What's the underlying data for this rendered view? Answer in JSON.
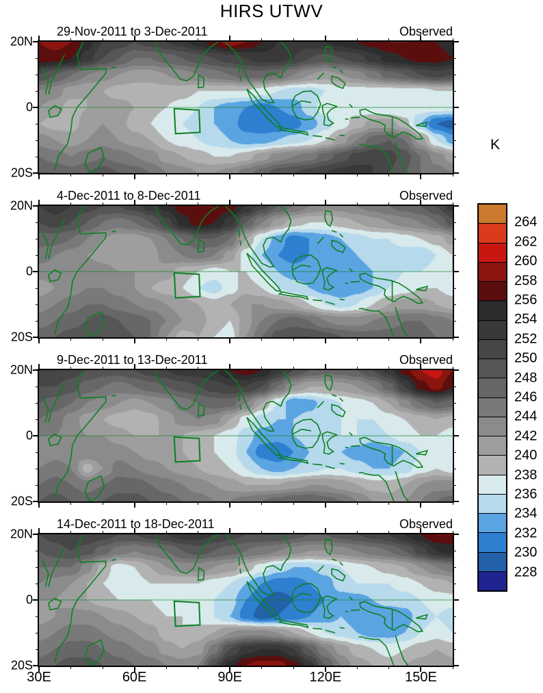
{
  "title": "HIRS UTWV",
  "colorbar": {
    "unit_label": "K",
    "boundary_labels": [
      "264",
      "262",
      "260",
      "258",
      "256",
      "254",
      "252",
      "250",
      "248",
      "246",
      "244",
      "242",
      "240",
      "238",
      "236",
      "234",
      "232",
      "230",
      "228"
    ]
  },
  "axes": {
    "x_tick_labels": [
      "30E",
      "60E",
      "90E",
      "120E",
      "150E"
    ],
    "x_tick_lons": [
      30,
      60,
      90,
      120,
      150
    ],
    "y_tick_labels": [
      "20N",
      "0",
      "20S"
    ],
    "lon_range": [
      30,
      160
    ],
    "lat_range": [
      -20,
      20
    ]
  },
  "chart_data": {
    "type": "heatmap",
    "title": "HIRS UTWV",
    "units": "K",
    "subtitle_right": "Observed",
    "lon_grid_start": 30,
    "lon_grid_step": 5,
    "lat_grid_start": 20,
    "lat_grid_step": -5,
    "levels": [
      228,
      230,
      232,
      234,
      236,
      238,
      240,
      242,
      244,
      246,
      248,
      250,
      252,
      254,
      256,
      258,
      260,
      262,
      264
    ],
    "palette_cold_to_hot": [
      "#1f2490",
      "#2361a8",
      "#2e7fd0",
      "#5ba4e2",
      "#b7d9ec",
      "#d9eaec",
      "#b2b2b2",
      "#9e9e9e",
      "#8b8b8b",
      "#797979",
      "#676767",
      "#565656",
      "#464646",
      "#393939",
      "#2d2d2d",
      "#5a0f0e",
      "#8c1510",
      "#c81710",
      "#d93b1b",
      "#ca7a2c"
    ],
    "coastline_color": "#0a8020",
    "annotations": {
      "equator_dashed_line": true,
      "study_box_lon": [
        72.5,
        80.3
      ],
      "study_box_lat": [
        -7.9,
        -0.6
      ]
    },
    "panels": [
      {
        "date_range": "29-Nov-2011 to 3-Dec-2011",
        "source_label": "Observed",
        "grid": [
          [
            258,
            259,
            258,
            255,
            252,
            251,
            250,
            251,
            252,
            253,
            255,
            257,
            259,
            258,
            256,
            254,
            253,
            253,
            254,
            255,
            256,
            257,
            258,
            258,
            257,
            256,
            255
          ],
          [
            257,
            257,
            256,
            253,
            250,
            248,
            246,
            246,
            247,
            248,
            249,
            250,
            251,
            252,
            253,
            253,
            252,
            250,
            249,
            250,
            251,
            253,
            255,
            256,
            257,
            257,
            256
          ],
          [
            250,
            248,
            246,
            244,
            243,
            242,
            241,
            241,
            242,
            243,
            244,
            245,
            246,
            247,
            247,
            246,
            244,
            242,
            241,
            242,
            243,
            245,
            247,
            248,
            250,
            251,
            250
          ],
          [
            244,
            243,
            241,
            240,
            240,
            239,
            239,
            239,
            239,
            239,
            238,
            238,
            238,
            238,
            237,
            236,
            235,
            235,
            236,
            237,
            237,
            237,
            237,
            237,
            237,
            238,
            238
          ],
          [
            242,
            241,
            239,
            240,
            241,
            241,
            240,
            239,
            238,
            237,
            236,
            234,
            233,
            232,
            231,
            232,
            233,
            235,
            237,
            238,
            237,
            236,
            236,
            236,
            237,
            237,
            237
          ],
          [
            240,
            239,
            239,
            241,
            242,
            241,
            239,
            238,
            236,
            236,
            235,
            234,
            233,
            231,
            230,
            230,
            231,
            233,
            235,
            237,
            239,
            241,
            241,
            239,
            234,
            230,
            229
          ],
          [
            243,
            242,
            241,
            242,
            243,
            242,
            241,
            240,
            238,
            237,
            236,
            235,
            234,
            233,
            233,
            234,
            235,
            236,
            238,
            241,
            244,
            247,
            248,
            246,
            241,
            236,
            233
          ],
          [
            246,
            245,
            244,
            245,
            246,
            245,
            244,
            243,
            241,
            240,
            239,
            238,
            238,
            239,
            241,
            243,
            244,
            245,
            247,
            249,
            251,
            252,
            251,
            249,
            246,
            243,
            241
          ],
          [
            248,
            248,
            247,
            248,
            249,
            248,
            247,
            246,
            244,
            243,
            242,
            242,
            243,
            245,
            247,
            249,
            250,
            251,
            252,
            253,
            253,
            252,
            250,
            248,
            246,
            245,
            244
          ]
        ]
      },
      {
        "date_range": "4-Dec-2011 to 8-Dec-2011",
        "source_label": "Observed",
        "grid": [
          [
            252,
            253,
            252,
            251,
            250,
            250,
            251,
            253,
            255,
            257,
            258,
            258,
            257,
            254,
            251,
            248,
            246,
            244,
            243,
            243,
            244,
            245,
            246,
            247,
            248,
            250,
            253
          ],
          [
            250,
            251,
            250,
            248,
            246,
            245,
            246,
            248,
            251,
            255,
            257,
            256,
            253,
            248,
            244,
            241,
            239,
            238,
            238,
            239,
            240,
            241,
            242,
            243,
            244,
            246,
            249
          ],
          [
            247,
            247,
            246,
            244,
            242,
            241,
            241,
            242,
            244,
            246,
            248,
            248,
            246,
            240,
            236,
            233,
            231,
            232,
            233,
            234,
            235,
            236,
            236,
            237,
            238,
            239,
            241
          ],
          [
            245,
            244,
            243,
            242,
            241,
            240,
            240,
            241,
            243,
            244,
            245,
            244,
            241,
            237,
            234,
            232,
            231,
            232,
            233,
            233,
            234,
            235,
            235,
            235,
            234,
            236,
            238
          ],
          [
            243,
            243,
            244,
            244,
            243,
            242,
            242,
            242,
            241,
            239,
            238,
            237,
            238,
            238,
            236,
            234,
            233,
            233,
            233,
            233,
            233,
            234,
            235,
            236,
            236,
            237,
            238
          ],
          [
            241,
            242,
            243,
            244,
            244,
            243,
            242,
            240,
            239,
            238,
            236,
            235,
            237,
            239,
            238,
            236,
            235,
            234,
            233,
            232,
            233,
            234,
            236,
            237,
            238,
            238,
            237
          ],
          [
            243,
            244,
            245,
            246,
            246,
            245,
            244,
            243,
            242,
            241,
            240,
            239,
            240,
            242,
            242,
            241,
            240,
            238,
            236,
            235,
            236,
            238,
            240,
            241,
            241,
            240,
            239
          ],
          [
            245,
            246,
            247,
            248,
            249,
            248,
            247,
            246,
            244,
            242,
            241,
            239,
            238,
            241,
            244,
            246,
            247,
            246,
            244,
            243,
            243,
            244,
            245,
            246,
            246,
            245,
            244
          ],
          [
            247,
            248,
            249,
            250,
            250,
            249,
            248,
            246,
            242,
            239,
            240,
            238,
            237,
            242,
            246,
            249,
            250,
            250,
            249,
            248,
            247,
            247,
            247,
            247,
            247,
            246,
            245
          ]
        ]
      },
      {
        "date_range": "9-Dec-2011 to 13-Dec-2011",
        "source_label": "Observed",
        "grid": [
          [
            252,
            252,
            251,
            250,
            249,
            249,
            250,
            251,
            252,
            253,
            253,
            254,
            256,
            257,
            256,
            253,
            250,
            248,
            247,
            247,
            248,
            250,
            253,
            257,
            260,
            261,
            258
          ],
          [
            250,
            250,
            249,
            247,
            246,
            245,
            246,
            247,
            248,
            249,
            250,
            251,
            252,
            252,
            250,
            246,
            242,
            240,
            240,
            241,
            242,
            244,
            247,
            252,
            257,
            259,
            256
          ],
          [
            248,
            247,
            246,
            244,
            243,
            242,
            241,
            242,
            243,
            245,
            246,
            247,
            247,
            244,
            240,
            236,
            232,
            233,
            235,
            236,
            237,
            238,
            240,
            243,
            246,
            248,
            247
          ],
          [
            246,
            245,
            243,
            241,
            240,
            239,
            238,
            239,
            241,
            243,
            244,
            243,
            240,
            237,
            235,
            234,
            234,
            235,
            236,
            236,
            236,
            236,
            237,
            238,
            239,
            240,
            239
          ],
          [
            244,
            244,
            243,
            242,
            242,
            241,
            240,
            240,
            240,
            240,
            239,
            238,
            237,
            235,
            233,
            233,
            234,
            235,
            235,
            236,
            236,
            235,
            236,
            237,
            238,
            238,
            237
          ],
          [
            242,
            243,
            243,
            244,
            244,
            243,
            242,
            241,
            241,
            240,
            239,
            238,
            237,
            234,
            231,
            230,
            232,
            234,
            234,
            234,
            233,
            232,
            233,
            234,
            236,
            237,
            236
          ],
          [
            244,
            245,
            244,
            239,
            242,
            245,
            244,
            243,
            242,
            241,
            240,
            239,
            238,
            236,
            234,
            233,
            234,
            235,
            236,
            236,
            235,
            234,
            234,
            235,
            237,
            238,
            237
          ],
          [
            246,
            247,
            246,
            245,
            246,
            247,
            247,
            246,
            245,
            244,
            243,
            242,
            241,
            240,
            240,
            240,
            241,
            242,
            242,
            241,
            240,
            239,
            239,
            240,
            242,
            243,
            243
          ],
          [
            248,
            249,
            248,
            247,
            248,
            249,
            249,
            248,
            247,
            246,
            245,
            244,
            244,
            245,
            246,
            247,
            248,
            248,
            247,
            246,
            244,
            242,
            241,
            242,
            244,
            246,
            247
          ]
        ]
      },
      {
        "date_range": "14-Dec-2011 to 18-Dec-2011",
        "source_label": "Observed",
        "grid": [
          [
            250,
            251,
            252,
            252,
            251,
            250,
            250,
            251,
            252,
            253,
            253,
            252,
            251,
            250,
            250,
            250,
            249,
            248,
            248,
            249,
            250,
            251,
            252,
            254,
            256,
            258,
            258
          ],
          [
            248,
            249,
            250,
            249,
            247,
            245,
            244,
            245,
            246,
            248,
            249,
            248,
            247,
            246,
            245,
            244,
            243,
            242,
            242,
            243,
            244,
            245,
            246,
            248,
            251,
            254,
            255
          ],
          [
            246,
            246,
            246,
            243,
            239,
            237,
            238,
            240,
            242,
            243,
            243,
            242,
            241,
            239,
            237,
            235,
            234,
            234,
            235,
            236,
            237,
            238,
            239,
            240,
            242,
            244,
            245
          ],
          [
            244,
            243,
            242,
            240,
            238,
            237,
            237,
            238,
            238,
            238,
            238,
            237,
            236,
            234,
            232,
            231,
            231,
            232,
            233,
            235,
            236,
            236,
            236,
            237,
            238,
            239,
            240
          ],
          [
            242,
            242,
            241,
            240,
            239,
            238,
            238,
            238,
            237,
            237,
            237,
            236,
            235,
            232,
            230,
            229,
            230,
            231,
            232,
            233,
            233,
            234,
            235,
            235,
            236,
            237,
            237
          ],
          [
            241,
            242,
            243,
            243,
            242,
            241,
            240,
            239,
            238,
            238,
            237,
            236,
            234,
            231,
            229,
            230,
            231,
            232,
            233,
            234,
            233,
            232,
            232,
            233,
            235,
            236,
            235
          ],
          [
            243,
            244,
            245,
            245,
            244,
            243,
            242,
            241,
            239,
            238,
            239,
            240,
            242,
            243,
            243,
            242,
            240,
            238,
            236,
            235,
            234,
            233,
            233,
            234,
            236,
            237,
            236
          ],
          [
            245,
            246,
            247,
            247,
            246,
            245,
            244,
            243,
            241,
            240,
            241,
            245,
            250,
            253,
            254,
            254,
            252,
            248,
            244,
            241,
            239,
            238,
            237,
            238,
            239,
            240,
            239
          ],
          [
            247,
            248,
            249,
            249,
            248,
            247,
            246,
            245,
            244,
            243,
            244,
            250,
            255,
            258,
            259,
            259,
            257,
            253,
            248,
            244,
            241,
            240,
            239,
            240,
            241,
            242,
            241
          ]
        ]
      }
    ]
  }
}
